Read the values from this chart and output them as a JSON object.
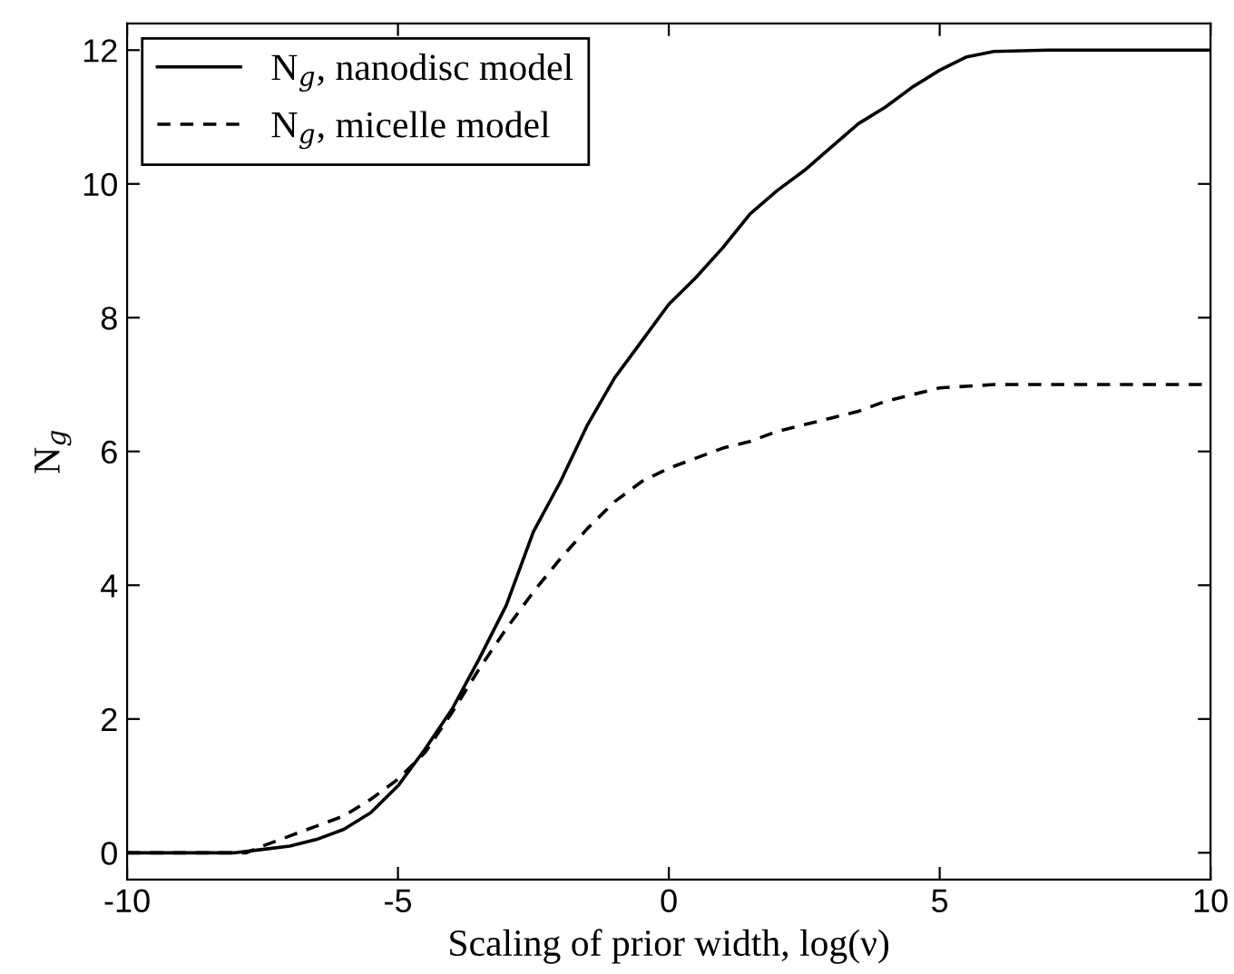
{
  "chart_data": {
    "type": "line",
    "xlabel": "Scaling of prior width, log(ν)",
    "ylabel": "N$_{g}$",
    "xlim": [
      -10,
      10
    ],
    "ylim": [
      -0.4,
      12.4
    ],
    "xticks": [
      -10,
      -5,
      0,
      5,
      10
    ],
    "yticks": [
      0,
      2,
      4,
      6,
      8,
      10,
      12
    ],
    "grid": false,
    "legend": "top left",
    "marker": "none",
    "series": [
      {
        "name": "N$_{g}$, nanodisc model",
        "color": "#000000",
        "line_style": "solid",
        "x": [
          -10,
          -8,
          -7.5,
          -7,
          -6.5,
          -6,
          -5.5,
          -5,
          -4.5,
          -4,
          -3.5,
          -3,
          -2.5,
          -2,
          -1.5,
          -1,
          -0.5,
          0,
          0.5,
          1,
          1.5,
          2,
          2.5,
          3,
          3.5,
          4,
          4.5,
          5,
          5.5,
          6,
          7,
          10
        ],
        "values": [
          0,
          0,
          0.05,
          0.1,
          0.2,
          0.35,
          0.6,
          1.0,
          1.55,
          2.15,
          2.9,
          3.7,
          4.8,
          5.55,
          6.4,
          7.1,
          7.65,
          8.2,
          8.6,
          9.05,
          9.55,
          9.9,
          10.2,
          10.55,
          10.9,
          11.15,
          11.45,
          11.7,
          11.9,
          11.98,
          12,
          12
        ]
      },
      {
        "name": "N$_{g}$, micelle model",
        "color": "#000000",
        "line_style": "dashed",
        "x": [
          -10,
          -8,
          -7.8,
          -7.5,
          -7,
          -6.5,
          -6,
          -5.5,
          -5,
          -4.5,
          -4,
          -3.5,
          -3,
          -2.5,
          -2,
          -1.5,
          -1,
          -0.5,
          0,
          0.5,
          1,
          1.5,
          2,
          2.5,
          3,
          3.5,
          4,
          4.5,
          5,
          6,
          10
        ],
        "values": [
          0,
          0,
          0,
          0.1,
          0.25,
          0.4,
          0.55,
          0.8,
          1.1,
          1.5,
          2.1,
          2.75,
          3.35,
          3.9,
          4.4,
          4.85,
          5.25,
          5.55,
          5.75,
          5.9,
          6.05,
          6.15,
          6.3,
          6.4,
          6.5,
          6.6,
          6.75,
          6.85,
          6.95,
          7,
          7
        ]
      }
    ]
  }
}
